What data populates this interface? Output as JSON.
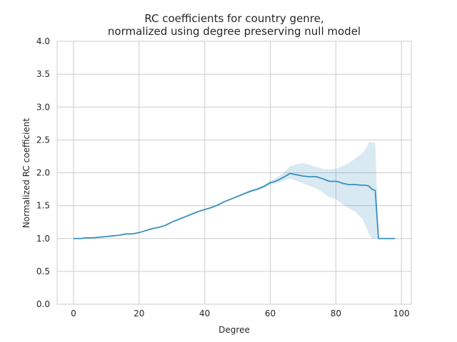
{
  "chart_data": {
    "type": "line",
    "title": "RC coefficients for country genre,",
    "subtitle": "normalized using degree preserving null model",
    "xlabel": "Degree",
    "ylabel": "Normalized RC coefficient",
    "xlim": [
      -5,
      103
    ],
    "ylim": [
      0,
      4.0
    ],
    "xticks": [
      0,
      20,
      40,
      60,
      80,
      100
    ],
    "yticks": [
      0.0,
      0.5,
      1.0,
      1.5,
      2.0,
      2.5,
      3.0,
      3.5,
      4.0
    ],
    "ytick_labels": [
      "0.0",
      "0.5",
      "1.0",
      "1.5",
      "2.0",
      "2.5",
      "3.0",
      "3.5",
      "4.0"
    ],
    "grid": true,
    "colors": {
      "line": "#3a8fbd",
      "band": "#3a8fbd"
    },
    "series": [
      {
        "x": [
          0,
          2,
          4,
          6,
          8,
          10,
          12,
          14,
          16,
          18,
          20,
          22,
          24,
          26,
          28,
          30,
          32,
          34,
          36,
          38,
          40,
          42,
          44,
          46,
          48,
          50,
          52,
          54,
          56,
          58,
          60,
          61,
          62,
          64,
          66,
          68,
          70,
          72,
          74,
          76,
          78,
          80,
          81,
          82,
          84,
          86,
          88,
          89,
          90,
          91,
          92,
          93,
          94,
          96,
          98
        ],
        "y": [
          1.0,
          1.0,
          1.01,
          1.01,
          1.02,
          1.03,
          1.04,
          1.05,
          1.07,
          1.07,
          1.09,
          1.12,
          1.15,
          1.17,
          1.2,
          1.25,
          1.29,
          1.33,
          1.37,
          1.41,
          1.44,
          1.47,
          1.51,
          1.56,
          1.6,
          1.64,
          1.68,
          1.72,
          1.75,
          1.79,
          1.85,
          1.86,
          1.88,
          1.93,
          1.99,
          1.97,
          1.95,
          1.94,
          1.94,
          1.91,
          1.87,
          1.87,
          1.86,
          1.84,
          1.82,
          1.82,
          1.81,
          1.81,
          1.8,
          1.75,
          1.73,
          1.0,
          1.0,
          1.0,
          1.0
        ],
        "lower": [
          1.0,
          1.0,
          1.01,
          1.01,
          1.02,
          1.03,
          1.04,
          1.05,
          1.07,
          1.07,
          1.08,
          1.11,
          1.14,
          1.16,
          1.19,
          1.24,
          1.28,
          1.32,
          1.36,
          1.4,
          1.43,
          1.46,
          1.5,
          1.55,
          1.59,
          1.63,
          1.67,
          1.7,
          1.73,
          1.77,
          1.82,
          1.83,
          1.84,
          1.88,
          1.91,
          1.88,
          1.84,
          1.8,
          1.76,
          1.7,
          1.63,
          1.6,
          1.56,
          1.52,
          1.46,
          1.4,
          1.3,
          1.2,
          1.08,
          1.0,
          1.0,
          1.0,
          1.0,
          1.0,
          1.0
        ],
        "upper": [
          1.0,
          1.0,
          1.01,
          1.01,
          1.02,
          1.03,
          1.04,
          1.05,
          1.07,
          1.07,
          1.1,
          1.13,
          1.16,
          1.18,
          1.21,
          1.26,
          1.3,
          1.34,
          1.38,
          1.42,
          1.45,
          1.48,
          1.52,
          1.57,
          1.61,
          1.65,
          1.7,
          1.74,
          1.77,
          1.81,
          1.88,
          1.9,
          1.93,
          2.0,
          2.1,
          2.13,
          2.15,
          2.12,
          2.09,
          2.06,
          2.05,
          2.06,
          2.08,
          2.1,
          2.15,
          2.22,
          2.3,
          2.35,
          2.46,
          2.46,
          2.46,
          1.0,
          1.0,
          1.0,
          1.0
        ]
      }
    ]
  }
}
